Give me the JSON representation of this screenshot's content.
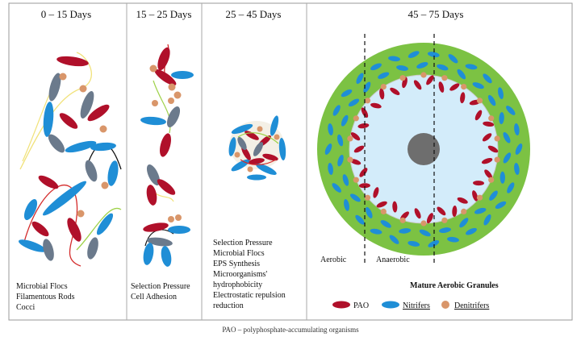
{
  "stages": [
    {
      "title": "0 – 15 Days",
      "notes": [
        "Microbial Flocs",
        "Filamentous Rods",
        "Cocci"
      ]
    },
    {
      "title": "15 – 25 Days",
      "notes": [
        "Selection Pressure",
        "Cell Adhesion"
      ]
    },
    {
      "title": "25 – 45 Days",
      "notes": [
        "Selection Pressure",
        "Microbial Flocs",
        "EPS Synthesis",
        "Microorganisms'",
        "hydrophobicity",
        "Electrostatic repulsion",
        "reduction"
      ]
    },
    {
      "title": "45 – 75 Days",
      "aerobic_label": "Aerobic",
      "anaerobic_label": "Anaerobic",
      "granule_title": "Mature Aerobic Granules"
    }
  ],
  "legend": [
    {
      "label": "PAO",
      "shape": "ellipse-red",
      "color": "#b0102a"
    },
    {
      "label": "Nitrifers",
      "shape": "ellipse-blue",
      "color": "#1f8ed6"
    },
    {
      "label": "Denitrifers",
      "shape": "circle-orange",
      "color": "#d9966a"
    }
  ],
  "caption": "PAO – polyphosphate-accumulating organisms",
  "colors": {
    "pao": "#b0102a",
    "nitrifier": "#1f8ed6",
    "denitrifier": "#d9966a",
    "filament_gray": "#6b7a8c",
    "aerobic_green": "#7cc243",
    "anoxic_blue": "#d3ecfa",
    "core_gray": "#6e6e6e"
  }
}
